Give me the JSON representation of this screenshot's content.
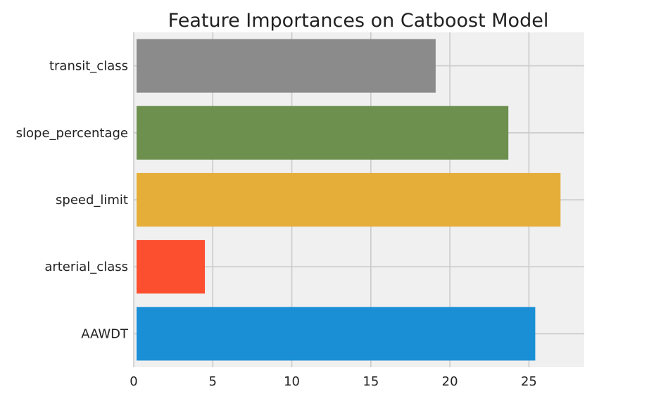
{
  "chart_data": {
    "type": "bar",
    "orientation": "horizontal",
    "title": "Feature Importances on Catboost Model",
    "xlabel": "",
    "ylabel": "",
    "categories": [
      "AAWDT",
      "arterial_class",
      "speed_limit",
      "slope_percentage",
      "transit_class"
    ],
    "values": [
      25.4,
      4.5,
      27.0,
      23.7,
      19.1
    ],
    "colors": [
      "#1a8fd6",
      "#fc4f30",
      "#e5ae38",
      "#6d904f",
      "#8b8b8b"
    ],
    "xlim": [
      0,
      28.5
    ],
    "xticks": [
      0,
      5,
      10,
      15,
      20,
      25
    ],
    "grid": true,
    "background": "#f0f0f0",
    "grid_color": "#cbcbcb"
  }
}
